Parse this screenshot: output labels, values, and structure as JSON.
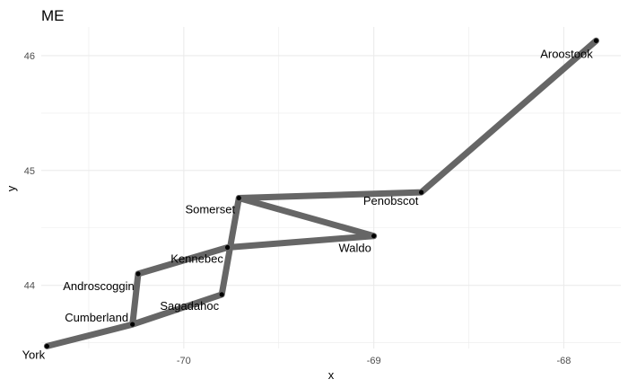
{
  "chart_data": {
    "type": "line",
    "title": "ME",
    "xlabel": "x",
    "ylabel": "y",
    "xlim": [
      -70.75,
      -67.7
    ],
    "ylim": [
      43.45,
      46.25
    ],
    "x_ticks": [
      -70,
      -69,
      -68
    ],
    "y_ticks": [
      44,
      45,
      46
    ],
    "grid": true,
    "colors": {
      "path": "#666666",
      "point": "#000000",
      "grid": "#ebebeb"
    },
    "points": [
      {
        "name": "York",
        "x": -70.72,
        "y": 43.47
      },
      {
        "name": "Cumberland",
        "x": -70.27,
        "y": 43.66
      },
      {
        "name": "Androscoggin",
        "x": -70.24,
        "y": 44.1
      },
      {
        "name": "Kennebec",
        "x": -69.77,
        "y": 44.33
      },
      {
        "name": "Waldo",
        "x": -69.0,
        "y": 44.43
      },
      {
        "name": "Somerset",
        "x": -69.71,
        "y": 44.76
      },
      {
        "name": "Penobscot",
        "x": -68.75,
        "y": 44.81
      },
      {
        "name": "Aroostook",
        "x": -67.83,
        "y": 46.13
      }
    ],
    "extra_points": [
      {
        "name": "Sagadahoc",
        "x": -69.8,
        "y": 43.92
      }
    ],
    "path_order": [
      "York",
      "Cumberland",
      "Sagadahoc",
      "Somerset",
      "Waldo",
      "Kennebec",
      "Androscoggin",
      "Cumberland"
    ],
    "path_order_2": [
      "Somerset",
      "Penobscot",
      "Aroostook"
    ]
  }
}
